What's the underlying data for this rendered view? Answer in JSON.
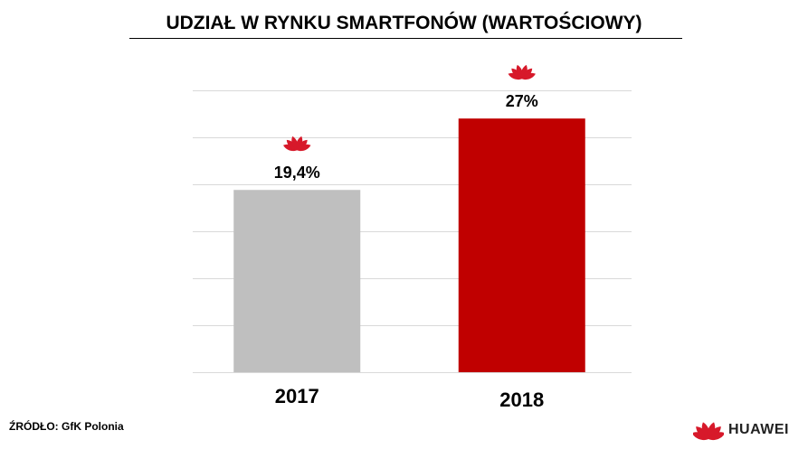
{
  "chart_data": {
    "type": "bar",
    "title": "UDZIAŁ W RYNKU SMARTFONÓW (WARTOŚCIOWY)",
    "categories": [
      "2017",
      "2018"
    ],
    "values": [
      19.4,
      27
    ],
    "data_labels": [
      "19,4%",
      "27%"
    ],
    "bar_colors": [
      "#bfbfbf",
      "#c00000"
    ],
    "ylim": [
      0,
      30
    ],
    "grid": true,
    "grid_step": 5,
    "y_tick_labels_shown": false,
    "xlabel": "",
    "ylabel": ""
  },
  "footer": {
    "source": "ŹRÓDŁO: GfK Polonia",
    "brand": "HUAWEI"
  },
  "colors": {
    "logo": "#d7192a",
    "grid": "#d9d9d9"
  },
  "icons": {
    "bar_marker": "huawei-logo-icon"
  }
}
